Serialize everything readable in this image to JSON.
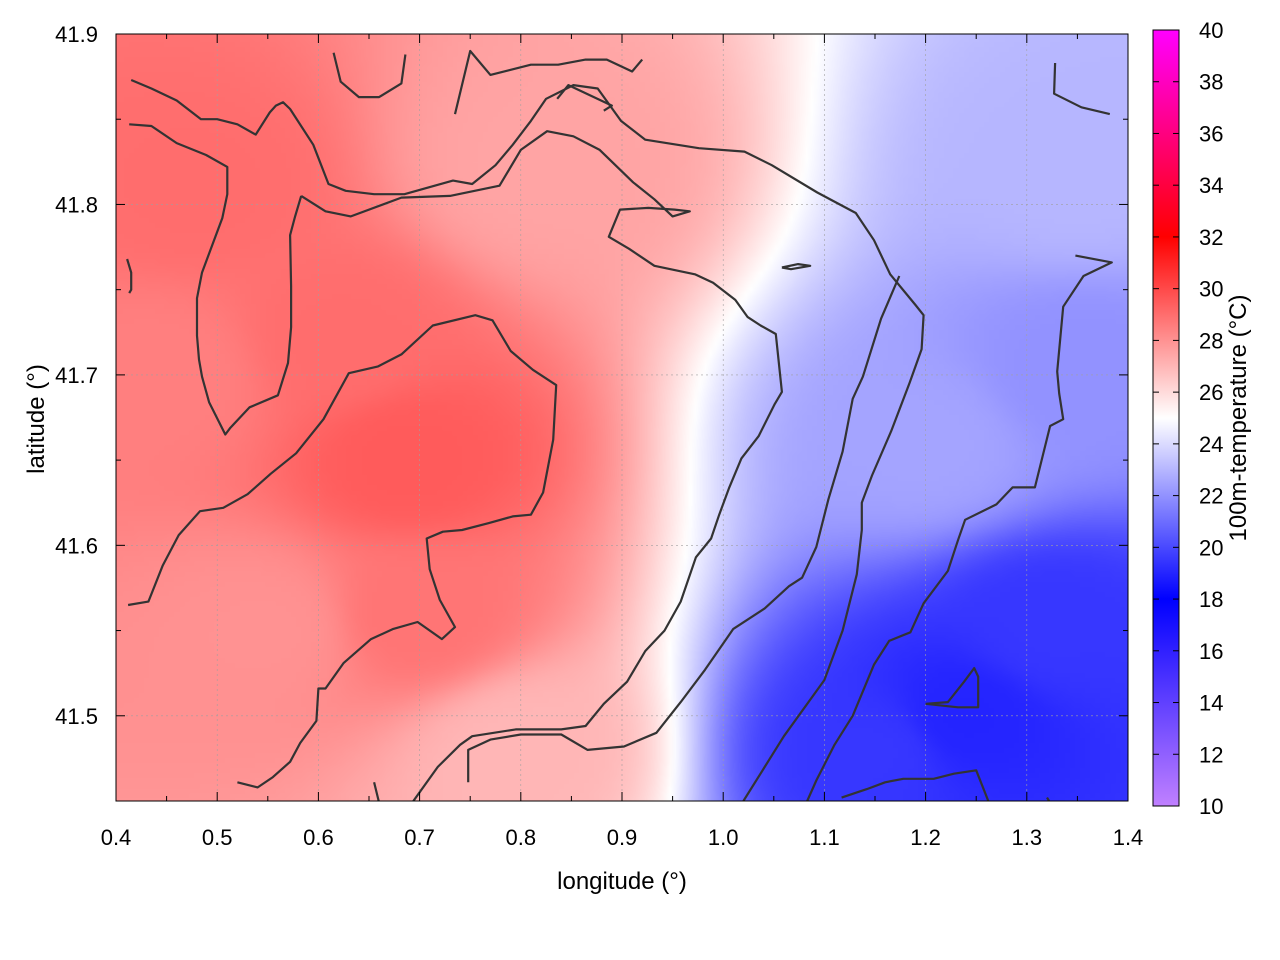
{
  "chart_data": {
    "type": "heatmap",
    "title": "",
    "xlabel": "longitude (°)",
    "ylabel": "latitude (°)",
    "colorbar_label": "100m-temperature (°C)",
    "xlim": [
      0.4,
      1.4
    ],
    "ylim": [
      41.45,
      41.9
    ],
    "x_ticks": [
      "0.4",
      "0.5",
      "0.6",
      "0.7",
      "0.8",
      "0.9",
      "1.0",
      "1.1",
      "1.2",
      "1.3",
      "1.4"
    ],
    "y_ticks": [
      "41.5",
      "41.6",
      "41.7",
      "41.8",
      "41.9"
    ],
    "colorbar_range": [
      10,
      40
    ],
    "colorbar_ticks": [
      "10",
      "12",
      "14",
      "16",
      "18",
      "20",
      "22",
      "24",
      "26",
      "28",
      "30",
      "32",
      "34",
      "36",
      "38",
      "40"
    ],
    "colormap": [
      {
        "value": 10,
        "color": "#c080ff"
      },
      {
        "value": 18,
        "color": "#0000ff"
      },
      {
        "value": 25,
        "color": "#ffffff"
      },
      {
        "value": 32,
        "color": "#ff0000"
      },
      {
        "value": 40,
        "color": "#ff00ff"
      }
    ],
    "grid": true,
    "temperature_peaks": [
      {
        "lon": 0.69,
        "lat": 41.65,
        "value": 29.5
      },
      {
        "lon": 0.48,
        "lat": 41.81,
        "value": 29.0
      },
      {
        "lon": 0.62,
        "lat": 41.72,
        "value": 29.0
      },
      {
        "lon": 0.45,
        "lat": 41.7,
        "value": 28.5
      },
      {
        "lon": 0.7,
        "lat": 41.56,
        "value": 28.8
      },
      {
        "lon": 0.82,
        "lat": 41.82,
        "value": 27.5
      },
      {
        "lon": 0.55,
        "lat": 41.55,
        "value": 28.0
      },
      {
        "lon": 1.24,
        "lat": 41.5,
        "value": 19.0
      },
      {
        "lon": 1.32,
        "lat": 41.55,
        "value": 19.5
      },
      {
        "lon": 1.15,
        "lat": 41.48,
        "value": 19.5
      },
      {
        "lon": 1.35,
        "lat": 41.7,
        "value": 22.0
      },
      {
        "lon": 1.2,
        "lat": 41.66,
        "value": 22.5
      },
      {
        "lon": 0.8,
        "lat": 41.48,
        "value": 27.0
      },
      {
        "lon": 1.35,
        "lat": 41.82,
        "value": 23.0
      }
    ],
    "contours": [
      [
        [
          0.415,
          41.873
        ],
        [
          0.435,
          41.868
        ],
        [
          0.46,
          41.861
        ],
        [
          0.484,
          41.85
        ],
        [
          0.5,
          41.85
        ],
        [
          0.52,
          41.847
        ],
        [
          0.538,
          41.841
        ],
        [
          0.552,
          41.854
        ],
        [
          0.558,
          41.858
        ],
        [
          0.565,
          41.86
        ],
        [
          0.572,
          41.856
        ],
        [
          0.595,
          41.835
        ],
        [
          0.61,
          41.812
        ],
        [
          0.627,
          41.808
        ],
        [
          0.655,
          41.806
        ],
        [
          0.685,
          41.806
        ],
        [
          0.733,
          41.814
        ],
        [
          0.752,
          41.812
        ],
        [
          0.775,
          41.823
        ],
        [
          0.792,
          41.835
        ],
        [
          0.81,
          41.849
        ],
        [
          0.825,
          41.862
        ],
        [
          0.852,
          41.87
        ],
        [
          0.876,
          41.868
        ],
        [
          0.899,
          41.849
        ],
        [
          0.923,
          41.838
        ],
        [
          0.976,
          41.833
        ],
        [
          1.021,
          41.831
        ],
        [
          1.048,
          41.823
        ],
        [
          1.093,
          41.807
        ],
        [
          1.131,
          41.795
        ],
        [
          1.149,
          41.779
        ],
        [
          1.165,
          41.759
        ],
        [
          1.19,
          41.741
        ],
        [
          1.198,
          41.735
        ],
        [
          1.196,
          41.715
        ],
        [
          1.184,
          41.695
        ],
        [
          1.166,
          41.667
        ],
        [
          1.147,
          41.641
        ],
        [
          1.137,
          41.625
        ],
        [
          1.137,
          41.609
        ],
        [
          1.132,
          41.583
        ],
        [
          1.118,
          41.55
        ],
        [
          1.1,
          41.521
        ],
        [
          1.06,
          41.488
        ],
        [
          1.02,
          41.45
        ]
      ],
      [
        [
          0.413,
          41.847
        ],
        [
          0.435,
          41.846
        ],
        [
          0.46,
          41.836
        ],
        [
          0.489,
          41.829
        ],
        [
          0.51,
          41.822
        ],
        [
          0.51,
          41.806
        ],
        [
          0.505,
          41.792
        ],
        [
          0.485,
          41.76
        ],
        [
          0.48,
          41.745
        ],
        [
          0.48,
          41.723
        ],
        [
          0.482,
          41.709
        ],
        [
          0.485,
          41.699
        ],
        [
          0.492,
          41.684
        ],
        [
          0.508,
          41.665
        ],
        [
          0.513,
          41.669
        ],
        [
          0.532,
          41.681
        ],
        [
          0.56,
          41.688
        ],
        [
          0.57,
          41.707
        ],
        [
          0.573,
          41.728
        ],
        [
          0.573,
          41.752
        ],
        [
          0.572,
          41.782
        ],
        [
          0.577,
          41.793
        ],
        [
          0.583,
          41.805
        ]
      ],
      [
        [
          0.583,
          41.805
        ],
        [
          0.607,
          41.796
        ],
        [
          0.632,
          41.793
        ],
        [
          0.682,
          41.804
        ],
        [
          0.73,
          41.805
        ],
        [
          0.779,
          41.811
        ],
        [
          0.8,
          41.832
        ],
        [
          0.826,
          41.843
        ],
        [
          0.852,
          41.84
        ],
        [
          0.878,
          41.832
        ],
        [
          0.911,
          41.813
        ],
        [
          0.932,
          41.803
        ],
        [
          0.95,
          41.793
        ],
        [
          0.967,
          41.796
        ],
        [
          0.952,
          41.797
        ],
        [
          0.926,
          41.798
        ],
        [
          0.898,
          41.797
        ],
        [
          0.887,
          41.781
        ],
        [
          0.907,
          41.774
        ],
        [
          0.932,
          41.764
        ],
        [
          0.972,
          41.759
        ],
        [
          0.99,
          41.754
        ],
        [
          1.012,
          41.744
        ],
        [
          1.024,
          41.734
        ],
        [
          1.037,
          41.729
        ],
        [
          1.052,
          41.724
        ],
        [
          1.058,
          41.69
        ],
        [
          1.051,
          41.683
        ],
        [
          1.035,
          41.664
        ],
        [
          1.018,
          41.651
        ],
        [
          1.006,
          41.634
        ],
        [
          0.996,
          41.618
        ],
        [
          0.988,
          41.604
        ],
        [
          0.973,
          41.593
        ],
        [
          0.958,
          41.567
        ],
        [
          0.942,
          41.55
        ],
        [
          0.923,
          41.538
        ],
        [
          0.905,
          41.52
        ],
        [
          0.882,
          41.507
        ],
        [
          0.864,
          41.494
        ],
        [
          0.84,
          41.492
        ],
        [
          0.795,
          41.492
        ],
        [
          0.752,
          41.488
        ],
        [
          0.74,
          41.483
        ],
        [
          0.718,
          41.47
        ],
        [
          0.683,
          41.441
        ],
        [
          0.667,
          41.432
        ],
        [
          0.655,
          41.461
        ]
      ],
      [
        [
          0.412,
          41.565
        ],
        [
          0.432,
          41.567
        ],
        [
          0.446,
          41.588
        ],
        [
          0.462,
          41.606
        ],
        [
          0.483,
          41.62
        ],
        [
          0.506,
          41.622
        ],
        [
          0.53,
          41.63
        ],
        [
          0.553,
          41.642
        ],
        [
          0.578,
          41.654
        ],
        [
          0.605,
          41.674
        ],
        [
          0.63,
          41.701
        ],
        [
          0.659,
          41.705
        ],
        [
          0.682,
          41.712
        ],
        [
          0.713,
          41.729
        ],
        [
          0.755,
          41.735
        ],
        [
          0.772,
          41.732
        ],
        [
          0.79,
          41.714
        ],
        [
          0.812,
          41.703
        ],
        [
          0.835,
          41.694
        ],
        [
          0.832,
          41.662
        ],
        [
          0.822,
          41.631
        ],
        [
          0.81,
          41.618
        ],
        [
          0.792,
          41.617
        ],
        [
          0.768,
          41.613
        ],
        [
          0.742,
          41.609
        ],
        [
          0.723,
          41.608
        ],
        [
          0.707,
          41.604
        ],
        [
          0.71,
          41.586
        ],
        [
          0.72,
          41.568
        ],
        [
          0.735,
          41.552
        ],
        [
          0.722,
          41.545
        ],
        [
          0.698,
          41.555
        ],
        [
          0.674,
          41.551
        ],
        [
          0.652,
          41.545
        ],
        [
          0.625,
          41.531
        ],
        [
          0.607,
          41.516
        ],
        [
          0.6,
          41.516
        ],
        [
          0.598,
          41.497
        ],
        [
          0.582,
          41.484
        ],
        [
          0.572,
          41.473
        ],
        [
          0.555,
          41.464
        ],
        [
          0.54,
          41.458
        ],
        [
          0.52,
          41.461
        ]
      ],
      [
        [
          0.748,
          41.461
        ],
        [
          0.748,
          41.48
        ],
        [
          0.77,
          41.486
        ],
        [
          0.8,
          41.489
        ],
        [
          0.84,
          41.489
        ],
        [
          0.866,
          41.48
        ],
        [
          0.902,
          41.482
        ],
        [
          0.934,
          41.49
        ],
        [
          0.958,
          41.508
        ],
        [
          0.982,
          41.527
        ],
        [
          1.01,
          41.551
        ],
        [
          1.041,
          41.563
        ],
        [
          1.065,
          41.576
        ],
        [
          1.078,
          41.581
        ],
        [
          1.092,
          41.599
        ],
        [
          1.104,
          41.627
        ],
        [
          1.118,
          41.655
        ],
        [
          1.128,
          41.686
        ],
        [
          1.138,
          41.699
        ],
        [
          1.156,
          41.733
        ],
        [
          1.174,
          41.758
        ]
      ],
      [
        [
          0.615,
          41.889
        ],
        [
          0.622,
          41.872
        ],
        [
          0.64,
          41.863
        ],
        [
          0.66,
          41.863
        ],
        [
          0.682,
          41.871
        ],
        [
          0.686,
          41.888
        ]
      ],
      [
        [
          0.735,
          41.853
        ],
        [
          0.75,
          41.89
        ],
        [
          0.77,
          41.876
        ],
        [
          0.81,
          41.882
        ],
        [
          0.837,
          41.882
        ],
        [
          0.864,
          41.885
        ],
        [
          0.885,
          41.885
        ],
        [
          0.91,
          41.878
        ],
        [
          0.92,
          41.885
        ]
      ],
      [
        [
          0.411,
          41.768
        ],
        [
          0.415,
          41.76
        ],
        [
          0.415,
          41.75
        ],
        [
          0.413,
          41.748
        ]
      ],
      [
        [
          1.117,
          41.452
        ],
        [
          1.142,
          41.457
        ],
        [
          1.16,
          41.461
        ],
        [
          1.178,
          41.463
        ],
        [
          1.208,
          41.463
        ],
        [
          1.228,
          41.466
        ],
        [
          1.25,
          41.468
        ],
        [
          1.262,
          41.45
        ]
      ],
      [
        [
          1.322,
          41.45
        ],
        [
          1.32,
          41.452
        ]
      ],
      [
        [
          1.058,
          41.763
        ],
        [
          1.074,
          41.765
        ],
        [
          1.086,
          41.764
        ],
        [
          1.067,
          41.762
        ],
        [
          1.058,
          41.763
        ]
      ],
      [
        [
          1.2,
          41.507
        ],
        [
          1.222,
          41.508
        ],
        [
          1.238,
          41.52
        ],
        [
          1.248,
          41.528
        ],
        [
          1.252,
          41.523
        ],
        [
          1.252,
          41.505
        ],
        [
          1.232,
          41.505
        ],
        [
          1.2,
          41.507
        ]
      ],
      [
        [
          1.328,
          41.883
        ],
        [
          1.327,
          41.865
        ],
        [
          1.354,
          41.857
        ],
        [
          1.382,
          41.853
        ]
      ],
      [
        [
          1.348,
          41.77
        ],
        [
          1.384,
          41.766
        ],
        [
          1.356,
          41.758
        ],
        [
          1.336,
          41.74
        ],
        [
          1.33,
          41.702
        ],
        [
          1.332,
          41.689
        ],
        [
          1.336,
          41.674
        ],
        [
          1.323,
          41.67
        ],
        [
          1.308,
          41.634
        ],
        [
          1.286,
          41.634
        ],
        [
          1.27,
          41.624
        ],
        [
          1.239,
          41.615
        ],
        [
          1.232,
          41.603
        ],
        [
          1.222,
          41.585
        ],
        [
          1.198,
          41.566
        ],
        [
          1.185,
          41.549
        ],
        [
          1.164,
          41.544
        ],
        [
          1.149,
          41.53
        ],
        [
          1.128,
          41.5
        ],
        [
          1.11,
          41.483
        ],
        [
          1.092,
          41.462
        ],
        [
          1.083,
          41.45
        ]
      ],
      [
        [
          0.836,
          41.862
        ],
        [
          0.847,
          41.87
        ],
        [
          0.89,
          41.858
        ],
        [
          0.882,
          41.855
        ]
      ]
    ]
  }
}
